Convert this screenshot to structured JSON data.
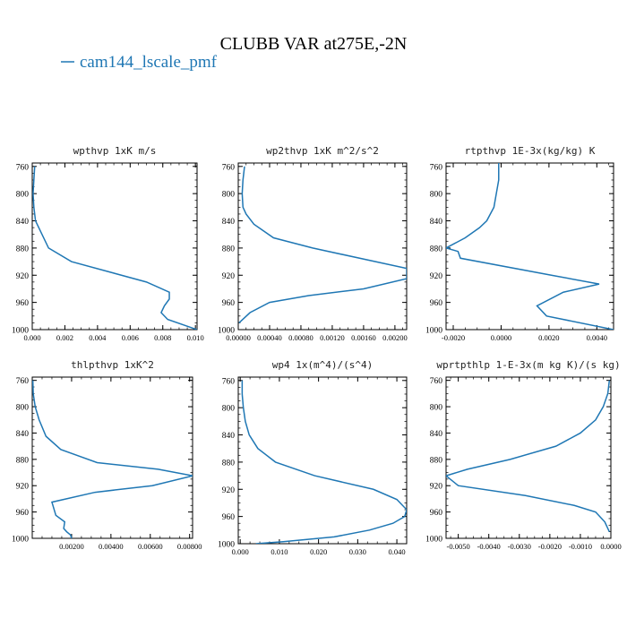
{
  "figure": {
    "title": "CLUBB VAR at275E,-2N",
    "legend_label": "cam144_lscale_pmf",
    "line_color": "#1f77b4",
    "axis_color": "#000000"
  },
  "chart_data": [
    {
      "type": "line",
      "title": "wpthvp   1xK m/s",
      "xlim": [
        0,
        0.0101
      ],
      "ylim": [
        1000,
        755
      ],
      "xticks": [
        "0.000",
        "0.002",
        "0.004",
        "0.006",
        "0.008",
        "0.010"
      ],
      "xtick_values": [
        0,
        0.002,
        0.004,
        0.006,
        0.008,
        0.01
      ],
      "yticks": [
        "760",
        "800",
        "840",
        "880",
        "920",
        "960",
        "1000"
      ],
      "ytick_values": [
        760,
        800,
        840,
        880,
        920,
        960,
        1000
      ],
      "series": [
        {
          "x": [
            0.00015,
            0.0001,
            5e-05,
            0.0001,
            0.0002,
            0.0005,
            0.001,
            0.0024,
            0.007,
            0.0084,
            0.0084,
            0.0081,
            0.0079,
            0.0083,
            0.0101
          ],
          "y": [
            760,
            780,
            800,
            820,
            840,
            855,
            880,
            900,
            930,
            945,
            955,
            965,
            975,
            985,
            1000
          ]
        }
      ]
    },
    {
      "type": "line",
      "title": "wp2thvp   1xK m^2/s^2",
      "xlim": [
        0,
        0.00215
      ],
      "ylim": [
        1000,
        755
      ],
      "xticks": [
        "0.00000",
        "0.00040",
        "0.00080",
        "0.00120",
        "0.00160",
        "0.00200"
      ],
      "xtick_values": [
        0,
        0.0004,
        0.0008,
        0.0012,
        0.0016,
        0.002
      ],
      "yticks": [
        "760",
        "800",
        "840",
        "880",
        "920",
        "960",
        "1000"
      ],
      "ytick_values": [
        760,
        800,
        840,
        880,
        920,
        960,
        1000
      ],
      "series": [
        {
          "x": [
            8e-05,
            6e-05,
            5e-05,
            6e-05,
            0.0001,
            0.0002,
            0.00045,
            0.00095,
            0.00215,
            0.00215,
            0.0016,
            0.0009,
            0.0004,
            0.00015,
            1e-05
          ],
          "y": [
            760,
            780,
            800,
            820,
            830,
            845,
            865,
            880,
            910,
            925,
            940,
            950,
            960,
            975,
            990
          ]
        }
      ]
    },
    {
      "type": "line",
      "title": "rtpthvp   1E-3x(kg/kg) K",
      "xlim": [
        -0.0023,
        0.0047
      ],
      "ylim": [
        1000,
        755
      ],
      "xticks": [
        "-0.0020",
        "0.0000",
        "0.0020",
        "0.0040"
      ],
      "xtick_values": [
        -0.002,
        0,
        0.002,
        0.004
      ],
      "yticks": [
        "760",
        "800",
        "840",
        "880",
        "920",
        "960",
        "1000"
      ],
      "ytick_values": [
        760,
        800,
        840,
        880,
        920,
        960,
        1000
      ],
      "series": [
        {
          "x": [
            -0.0001,
            -0.0001,
            -0.0002,
            -0.0003,
            -0.0006,
            -0.0009,
            -0.0015,
            -0.0023,
            -0.0018,
            -0.0017,
            0.0021,
            0.0041,
            0.0026,
            0.0015,
            0.0019,
            0.0047
          ],
          "y": [
            755,
            780,
            800,
            820,
            840,
            850,
            865,
            880,
            885,
            895,
            920,
            933,
            945,
            965,
            980,
            1000
          ]
        }
      ]
    },
    {
      "type": "line",
      "title": "thlpthvp   1xK^2",
      "xlim": [
        0,
        0.00815
      ],
      "ylim": [
        1000,
        755
      ],
      "xticks": [
        "0.00200",
        "0.00400",
        "0.00600",
        "0.00800"
      ],
      "xtick_values": [
        0.002,
        0.004,
        0.006,
        0.008
      ],
      "yticks": [
        "760",
        "800",
        "840",
        "880",
        "920",
        "960",
        "1000"
      ],
      "ytick_values": [
        760,
        800,
        840,
        880,
        920,
        960,
        1000
      ],
      "series": [
        {
          "x": [
            3e-05,
            5e-05,
            0.00015,
            0.00035,
            0.0007,
            0.00145,
            0.0033,
            0.0064,
            0.00815,
            0.0061,
            0.0032,
            0.001,
            0.0012,
            0.00165,
            0.0016,
            0.00175,
            0.00195,
            0.002
          ],
          "y": [
            760,
            780,
            800,
            820,
            845,
            865,
            885,
            895,
            905,
            920,
            930,
            945,
            965,
            975,
            985,
            990,
            995,
            1000
          ]
        }
      ]
    },
    {
      "type": "line",
      "title": "wp4   1x(m^4)/(s^4)",
      "xlim": [
        -0.0005,
        0.0425
      ],
      "ylim": [
        1000,
        755
      ],
      "xticks": [
        "0.000",
        "0.010",
        "0.020",
        "0.030",
        "0.040"
      ],
      "xtick_values": [
        0,
        0.01,
        0.02,
        0.03,
        0.04
      ],
      "yticks": [
        "760",
        "800",
        "840",
        "880",
        "920",
        "960",
        "1000"
      ],
      "ytick_values": [
        760,
        800,
        840,
        880,
        920,
        960,
        1000
      ],
      "series": [
        {
          "x": [
            0.0005,
            0.0005,
            0.0008,
            0.0013,
            0.0023,
            0.0045,
            0.009,
            0.019,
            0.034,
            0.04,
            0.0425,
            0.042,
            0.039,
            0.033,
            0.024,
            0.011,
            0.004
          ],
          "y": [
            760,
            780,
            800,
            820,
            840,
            860,
            880,
            900,
            920,
            935,
            950,
            960,
            970,
            980,
            990,
            997,
            1000
          ]
        }
      ]
    },
    {
      "type": "line",
      "title": "wprtpthlp   1-E-3x(m kg K)/(s kg)",
      "xlim": [
        -0.0054,
        0.0
      ],
      "ylim": [
        1000,
        755
      ],
      "xticks": [
        "-0.0050",
        "-0.0040",
        "-0.0030",
        "-0.0020",
        "-0.0010",
        "0.0000"
      ],
      "xtick_values": [
        -0.005,
        -0.004,
        -0.003,
        -0.002,
        -0.001,
        0
      ],
      "yticks": [
        "760",
        "800",
        "840",
        "880",
        "920",
        "960",
        "1000"
      ],
      "ytick_values": [
        760,
        800,
        840,
        880,
        920,
        960,
        1000
      ],
      "series": [
        {
          "x": [
            -5e-05,
            -0.0001,
            -0.00025,
            -0.0005,
            -0.001,
            -0.0018,
            -0.0033,
            -0.0047,
            -0.0054,
            -0.005,
            -0.0028,
            -0.0012,
            -0.0005,
            -0.0002,
            -5e-05
          ],
          "y": [
            760,
            780,
            800,
            820,
            840,
            860,
            880,
            895,
            905,
            920,
            935,
            950,
            960,
            975,
            990
          ]
        }
      ]
    }
  ]
}
